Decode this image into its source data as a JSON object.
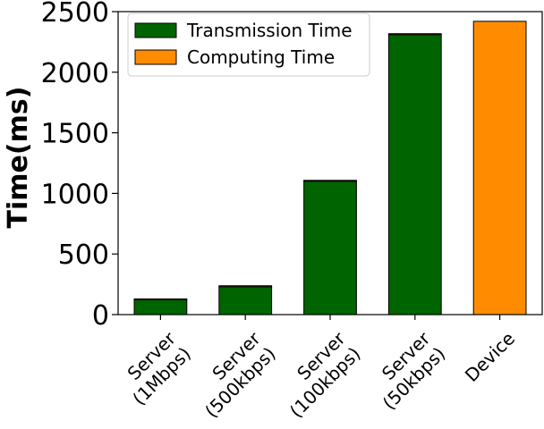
{
  "chart_data": {
    "type": "bar",
    "stacked": true,
    "categories": [
      [
        "Server",
        "(1Mbps)"
      ],
      [
        "Server",
        "(500kbps)"
      ],
      [
        "Server",
        "(100kbps)"
      ],
      [
        "Server",
        "(50kbps)"
      ],
      [
        "Device"
      ]
    ],
    "series": [
      {
        "name": "Transmission Time",
        "color": "#006400",
        "values": [
          122,
          230,
          1100,
          2310,
          0
        ]
      },
      {
        "name": "Computing Time",
        "color": "#ff8c00",
        "values": [
          8,
          8,
          8,
          8,
          2420
        ]
      }
    ],
    "ylabel": "Time(ms)",
    "ylim": [
      0,
      2500
    ],
    "yticks": [
      0,
      500,
      1000,
      1500,
      2000,
      2500
    ],
    "legend_position": "upper-left",
    "grid": false
  }
}
